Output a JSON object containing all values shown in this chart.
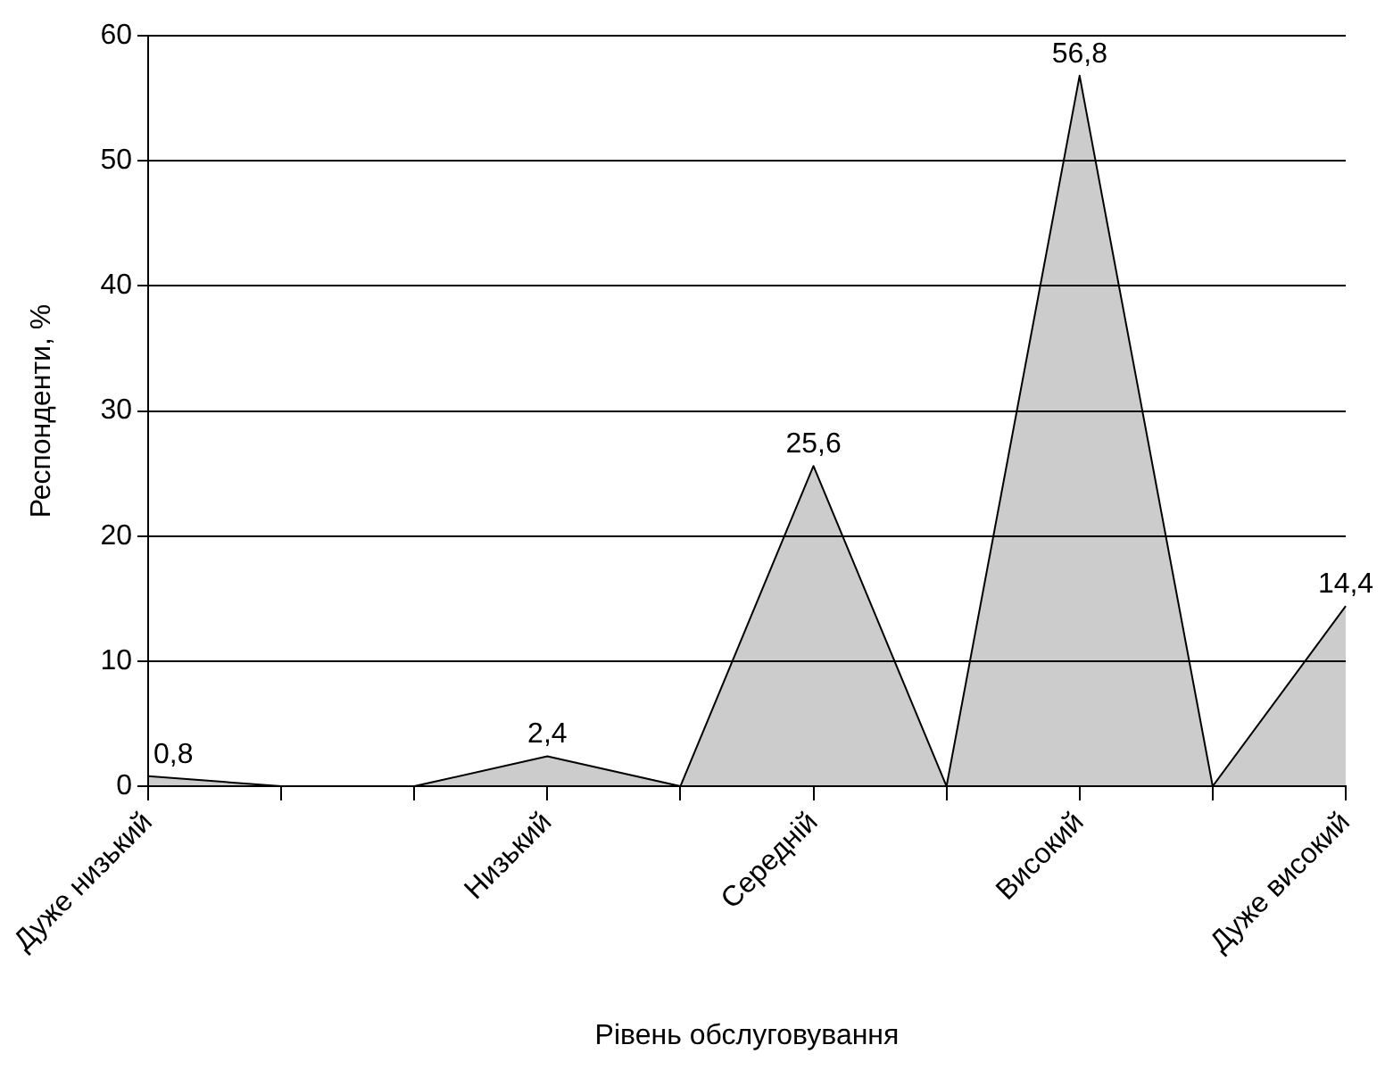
{
  "chart_data": {
    "type": "area",
    "xlabel": "Рівень обслуговування",
    "ylabel": "Респонденти, %",
    "categories": [
      "Дуже низький",
      null,
      null,
      "Низький",
      null,
      "Середній",
      null,
      "Високий",
      null,
      "Дуже високий"
    ],
    "series": [
      {
        "color": "#000000",
        "values": [
          0.8,
          0,
          0,
          2.4,
          0,
          25.6,
          0,
          56.8,
          0,
          14.4
        ],
        "value_labels": [
          "0,8",
          null,
          null,
          "2,4",
          null,
          "25,6",
          null,
          "56,8",
          null,
          "14,4"
        ]
      }
    ],
    "ylim": [
      0,
      60
    ],
    "yticks": [
      0,
      10,
      20,
      30,
      40,
      50,
      60
    ],
    "grid": "y",
    "legend": false
  }
}
